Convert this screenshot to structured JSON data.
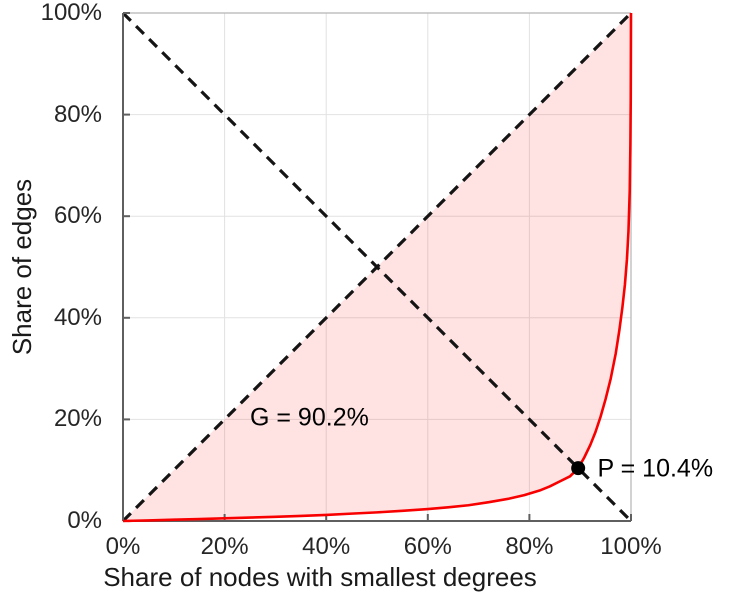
{
  "chart_data": {
    "type": "line",
    "title": "",
    "xlabel": "Share of nodes with smallest degrees",
    "ylabel": "Share of edges",
    "xlim": [
      0,
      100
    ],
    "ylim": [
      0,
      100
    ],
    "grid": true,
    "x_tick_values": [
      0,
      20,
      40,
      60,
      80,
      100
    ],
    "x_ticks": [
      "0%",
      "20%",
      "40%",
      "60%",
      "80%",
      "100%"
    ],
    "y_tick_values": [
      0,
      20,
      40,
      60,
      80,
      100
    ],
    "y_ticks": [
      "0%",
      "20%",
      "40%",
      "60%",
      "80%",
      "100%"
    ],
    "colors": {
      "curve": "#f80000",
      "fill": "rgba(255,0,0,0.11)",
      "dashed": "#141414",
      "grid": "#e2e2e2",
      "spine_main": "#5f5f5f",
      "spine_box": "#b5b5b5",
      "marker": "#000000"
    },
    "series": [
      {
        "name": "lorenz-curve",
        "style": "solid",
        "color": "#f80000",
        "points": [
          [
            0,
            0
          ],
          [
            2,
            0.05
          ],
          [
            5,
            0.12
          ],
          [
            10,
            0.25
          ],
          [
            15,
            0.38
          ],
          [
            20,
            0.52
          ],
          [
            25,
            0.67
          ],
          [
            30,
            0.83
          ],
          [
            35,
            1.0
          ],
          [
            40,
            1.2
          ],
          [
            45,
            1.45
          ],
          [
            50,
            1.7
          ],
          [
            55,
            2.0
          ],
          [
            60,
            2.35
          ],
          [
            64,
            2.7
          ],
          [
            68,
            3.1
          ],
          [
            72,
            3.7
          ],
          [
            76,
            4.4
          ],
          [
            79,
            5.1
          ],
          [
            82,
            6.0
          ],
          [
            84,
            6.8
          ],
          [
            86,
            7.8
          ],
          [
            88,
            8.8
          ],
          [
            89.6,
            10.4
          ],
          [
            90.8,
            12.5
          ],
          [
            92,
            15
          ],
          [
            93,
            17.5
          ],
          [
            94,
            20.5
          ],
          [
            95,
            24
          ],
          [
            96,
            28
          ],
          [
            97,
            33
          ],
          [
            97.7,
            37.5
          ],
          [
            98.3,
            42
          ],
          [
            98.8,
            46.5
          ],
          [
            99.2,
            51.5
          ],
          [
            99.5,
            57
          ],
          [
            99.75,
            65
          ],
          [
            99.88,
            74
          ],
          [
            99.95,
            83
          ],
          [
            100,
            100
          ]
        ]
      },
      {
        "name": "equality-diagonal",
        "style": "dashed",
        "color": "#141414",
        "points": [
          [
            0,
            0
          ],
          [
            100,
            100
          ]
        ]
      },
      {
        "name": "anti-diagonal",
        "style": "dashed",
        "color": "#141414",
        "points": [
          [
            0,
            100
          ],
          [
            100,
            0
          ]
        ]
      }
    ],
    "fill_between": {
      "upper": "equality-diagonal",
      "lower": "lorenz-curve",
      "color": "rgba(255,0,0,0.11)"
    },
    "marker": {
      "x": 89.6,
      "y": 10.4,
      "radius": 7,
      "color": "#000000"
    },
    "annotations": [
      {
        "id": "gini",
        "text": "G = 90.2%",
        "x": 25,
        "y": 20.3,
        "align": "left"
      },
      {
        "id": "p-intersection",
        "text": "P = 10.4%",
        "x": 93.4,
        "y": 10.3,
        "align": "left"
      }
    ]
  }
}
